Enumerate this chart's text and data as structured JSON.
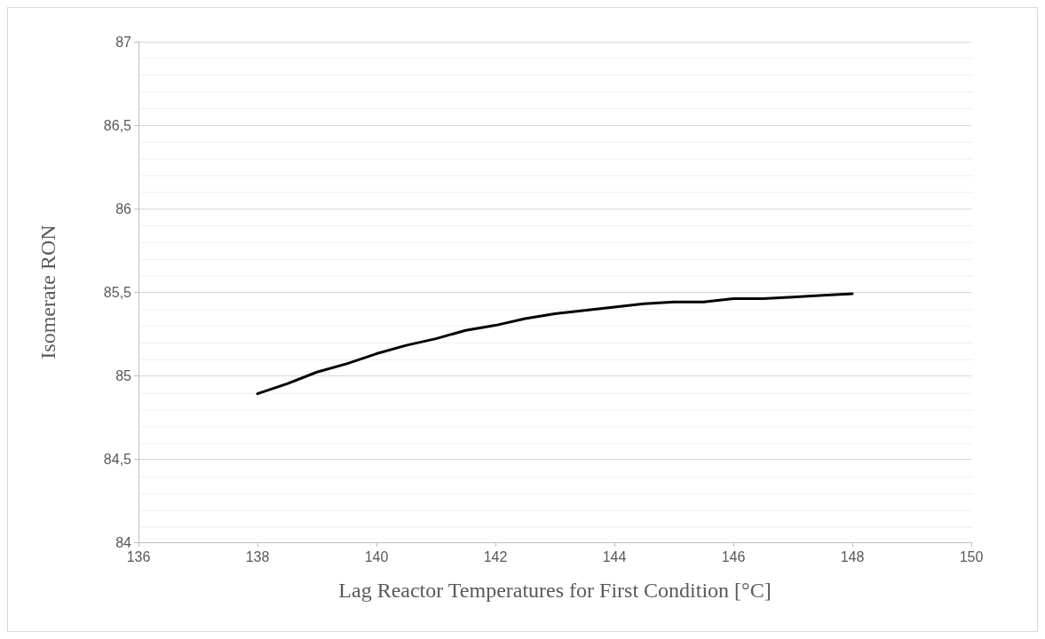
{
  "chart_data": {
    "type": "line",
    "xlabel": "Lag Reactor Temperatures for First Condition [°C]",
    "ylabel": "Isomerate RON",
    "x": [
      138,
      138.5,
      139,
      139.5,
      140,
      140.5,
      141,
      141.5,
      142,
      142.5,
      143,
      143.5,
      144,
      144.5,
      145,
      145.5,
      146,
      146.5,
      147,
      147.5,
      148
    ],
    "series": [
      {
        "color": "#000000",
        "values": [
          84.89,
          84.95,
          85.02,
          85.07,
          85.13,
          85.18,
          85.22,
          85.27,
          85.3,
          85.34,
          85.37,
          85.39,
          85.41,
          85.43,
          85.44,
          85.44,
          85.46,
          85.46,
          85.47,
          85.48,
          85.49
        ]
      }
    ],
    "xlim": [
      136,
      150
    ],
    "xticks": [
      136,
      138,
      140,
      142,
      144,
      146,
      148,
      150
    ],
    "ylim": [
      84,
      87
    ],
    "yticks": [
      84,
      {
        "value": 84.5,
        "label": "84,5"
      },
      85,
      {
        "value": 85.5,
        "label": "85,5"
      },
      86,
      {
        "value": 86.5,
        "label": "86,5"
      },
      87
    ],
    "grid": "y",
    "marker": "none",
    "line_style": "solid"
  }
}
